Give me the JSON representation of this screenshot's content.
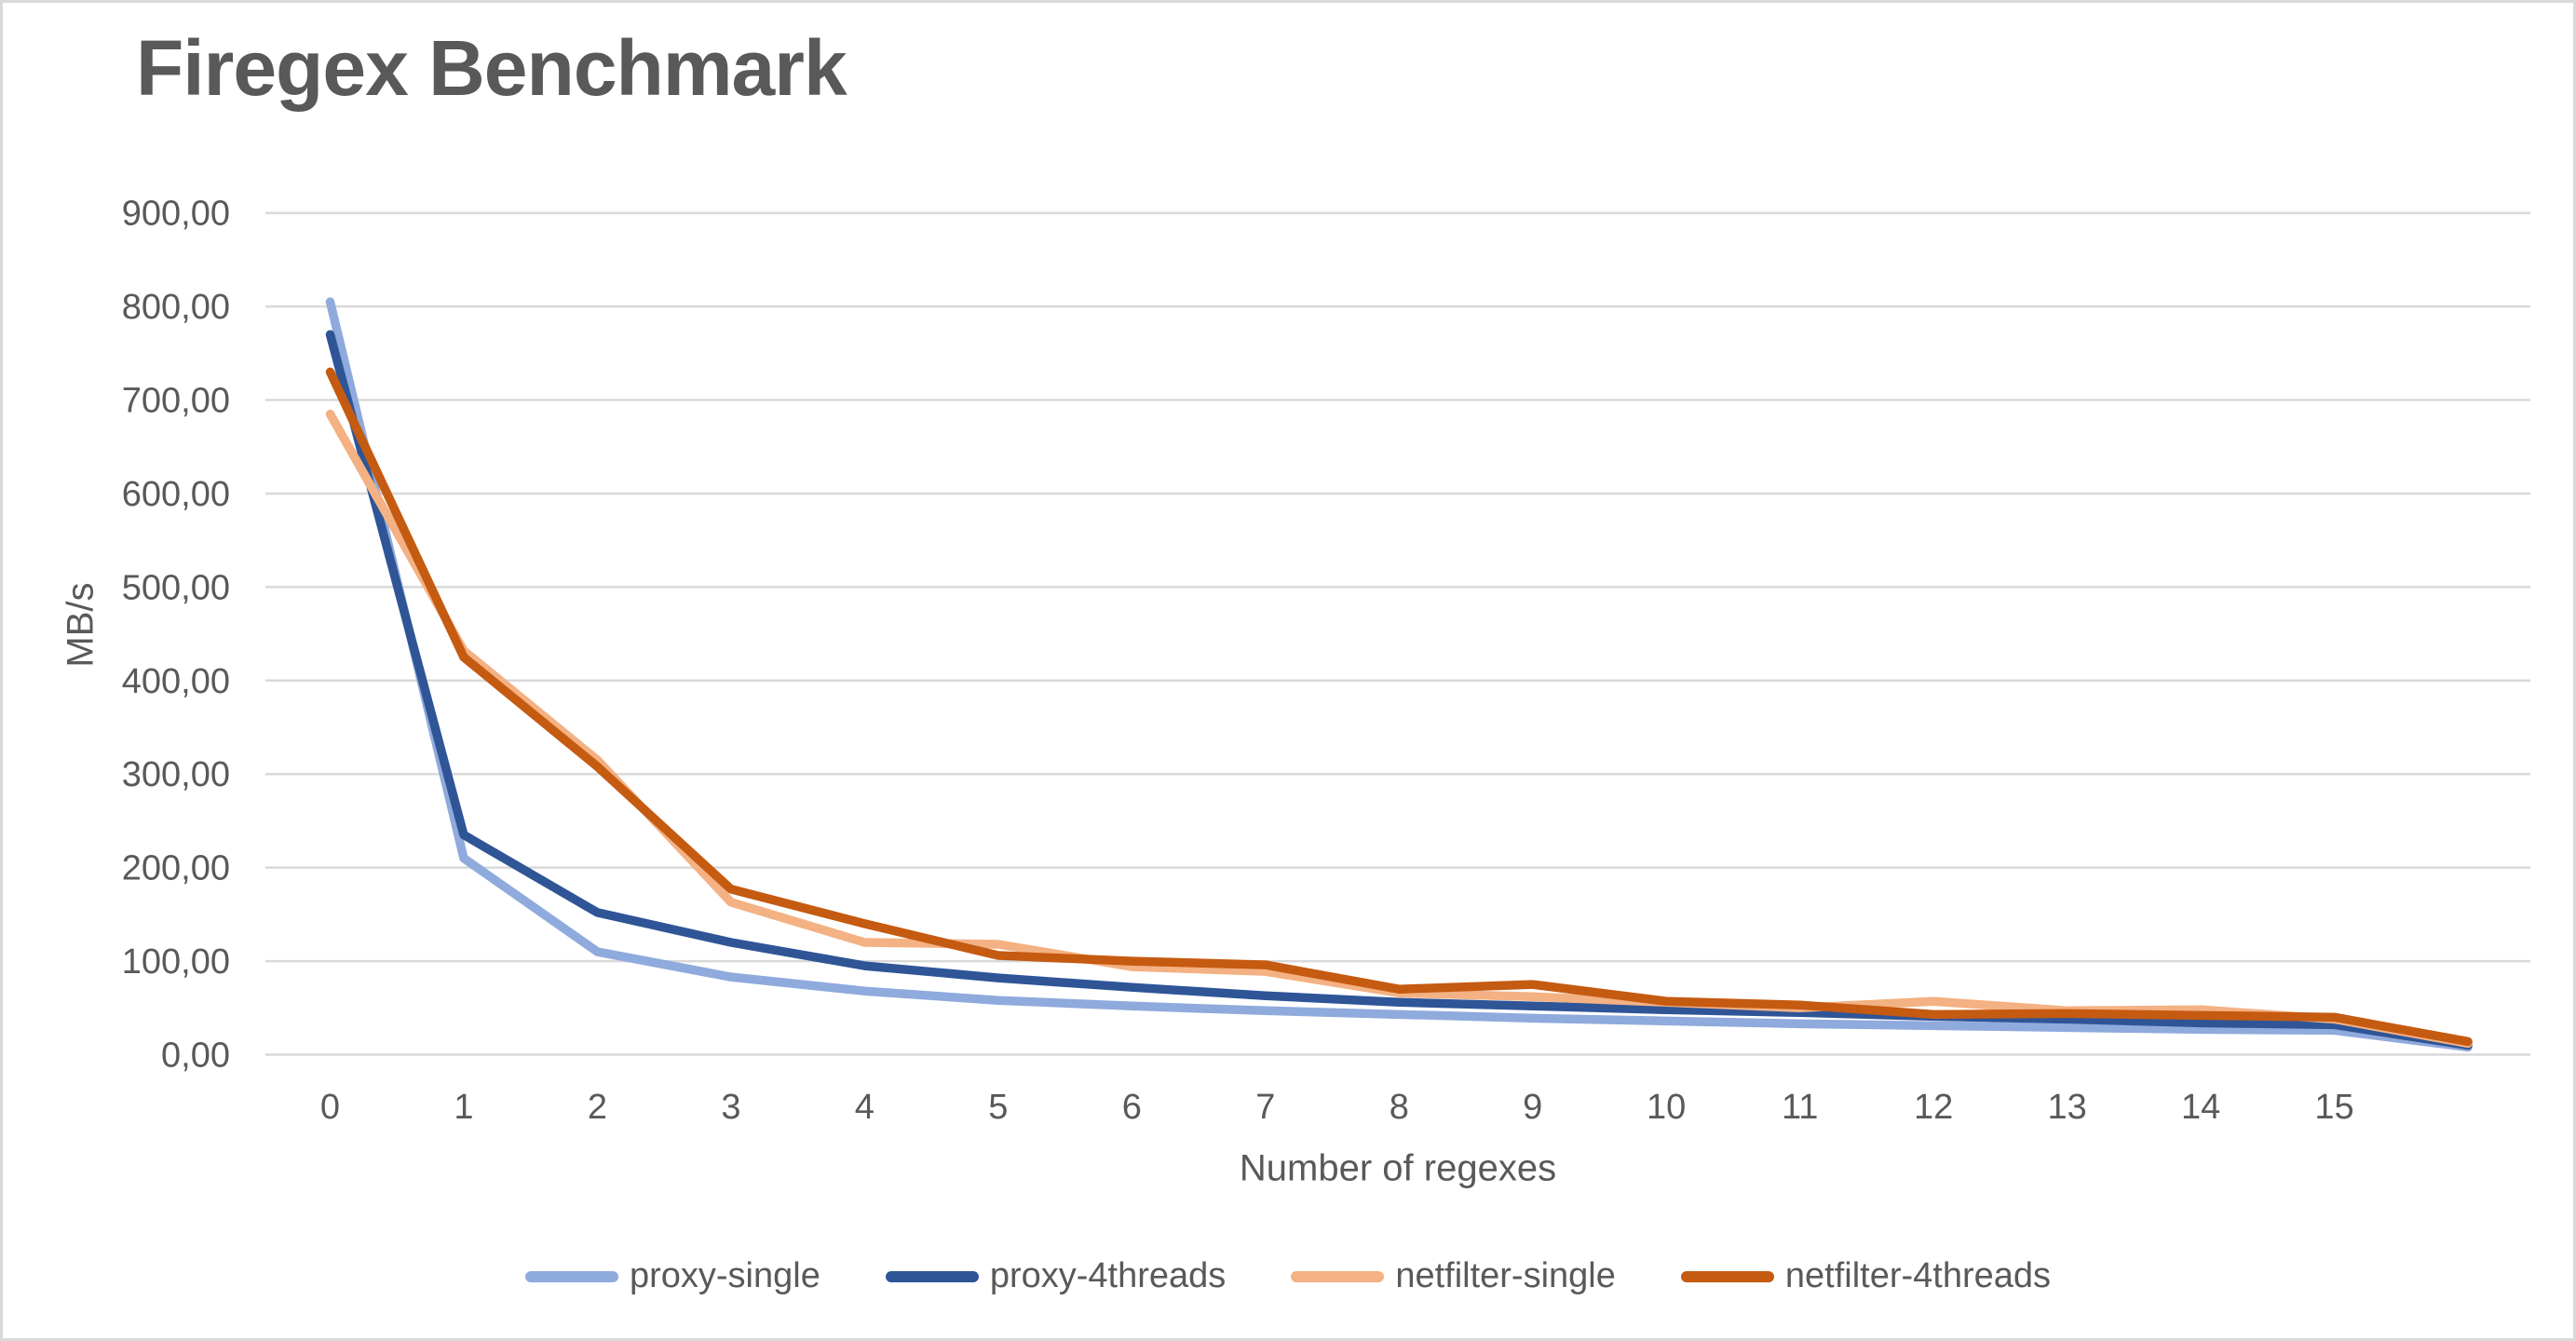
{
  "header": {
    "title": "Firegex Benchmark"
  },
  "colors": {
    "background": "#FFFFFF",
    "frame_border": "#D9D9D9",
    "gridline": "#D9D9D9",
    "text": "#595959",
    "proxy_single": "#8FAADC",
    "proxy_4threads": "#2F5597",
    "netfilter_single": "#F4B183",
    "netfilter_4threads": "#C55A11"
  },
  "chart_data": {
    "type": "line",
    "title": "Firegex Benchmark",
    "xlabel": "Number of regexes",
    "ylabel": "MB/s",
    "ylim": [
      0,
      900
    ],
    "grid": "horizontal",
    "legend_position": "bottom-center",
    "x": [
      0,
      1,
      2,
      3,
      4,
      5,
      6,
      7,
      8,
      9,
      10,
      11,
      12,
      13,
      14,
      15,
      16
    ],
    "x_ticks": [
      {
        "value": 0,
        "label": "0"
      },
      {
        "value": 1,
        "label": "1"
      },
      {
        "value": 2,
        "label": "2"
      },
      {
        "value": 3,
        "label": "3"
      },
      {
        "value": 4,
        "label": "4"
      },
      {
        "value": 5,
        "label": "5"
      },
      {
        "value": 6,
        "label": "6"
      },
      {
        "value": 7,
        "label": "7"
      },
      {
        "value": 8,
        "label": "8"
      },
      {
        "value": 9,
        "label": "9"
      },
      {
        "value": 10,
        "label": "10"
      },
      {
        "value": 11,
        "label": "11"
      },
      {
        "value": 12,
        "label": "12"
      },
      {
        "value": 13,
        "label": "13"
      },
      {
        "value": 14,
        "label": "14"
      },
      {
        "value": 15,
        "label": "15"
      }
    ],
    "y_ticks": [
      {
        "value": 0,
        "label": "0,00"
      },
      {
        "value": 100,
        "label": "100,00"
      },
      {
        "value": 200,
        "label": "200,00"
      },
      {
        "value": 300,
        "label": "300,00"
      },
      {
        "value": 400,
        "label": "400,00"
      },
      {
        "value": 500,
        "label": "500,00"
      },
      {
        "value": 600,
        "label": "600,00"
      },
      {
        "value": 700,
        "label": "700,00"
      },
      {
        "value": 800,
        "label": "800,00"
      },
      {
        "value": 900,
        "label": "900,00"
      }
    ],
    "series": [
      {
        "name": "proxy-single",
        "color": "#8FAADC",
        "values": [
          805,
          210,
          110,
          83,
          68,
          58,
          52,
          47,
          43,
          39,
          36,
          33,
          31,
          29,
          27,
          26,
          8
        ]
      },
      {
        "name": "proxy-4threads",
        "color": "#2F5597",
        "values": [
          770,
          235,
          152,
          120,
          95,
          82,
          72,
          63,
          56,
          52,
          48,
          45,
          41,
          38,
          34,
          32,
          10
        ]
      },
      {
        "name": "netfilter-single",
        "color": "#F4B183",
        "values": [
          685,
          432,
          315,
          163,
          120,
          118,
          94,
          89,
          66,
          62,
          56,
          50,
          57,
          47,
          48,
          38,
          12
        ]
      },
      {
        "name": "netfilter-4threads",
        "color": "#C55A11",
        "values": [
          730,
          425,
          308,
          177,
          140,
          106,
          100,
          96,
          70,
          75,
          57,
          53,
          43,
          44,
          42,
          40,
          14
        ]
      }
    ]
  }
}
